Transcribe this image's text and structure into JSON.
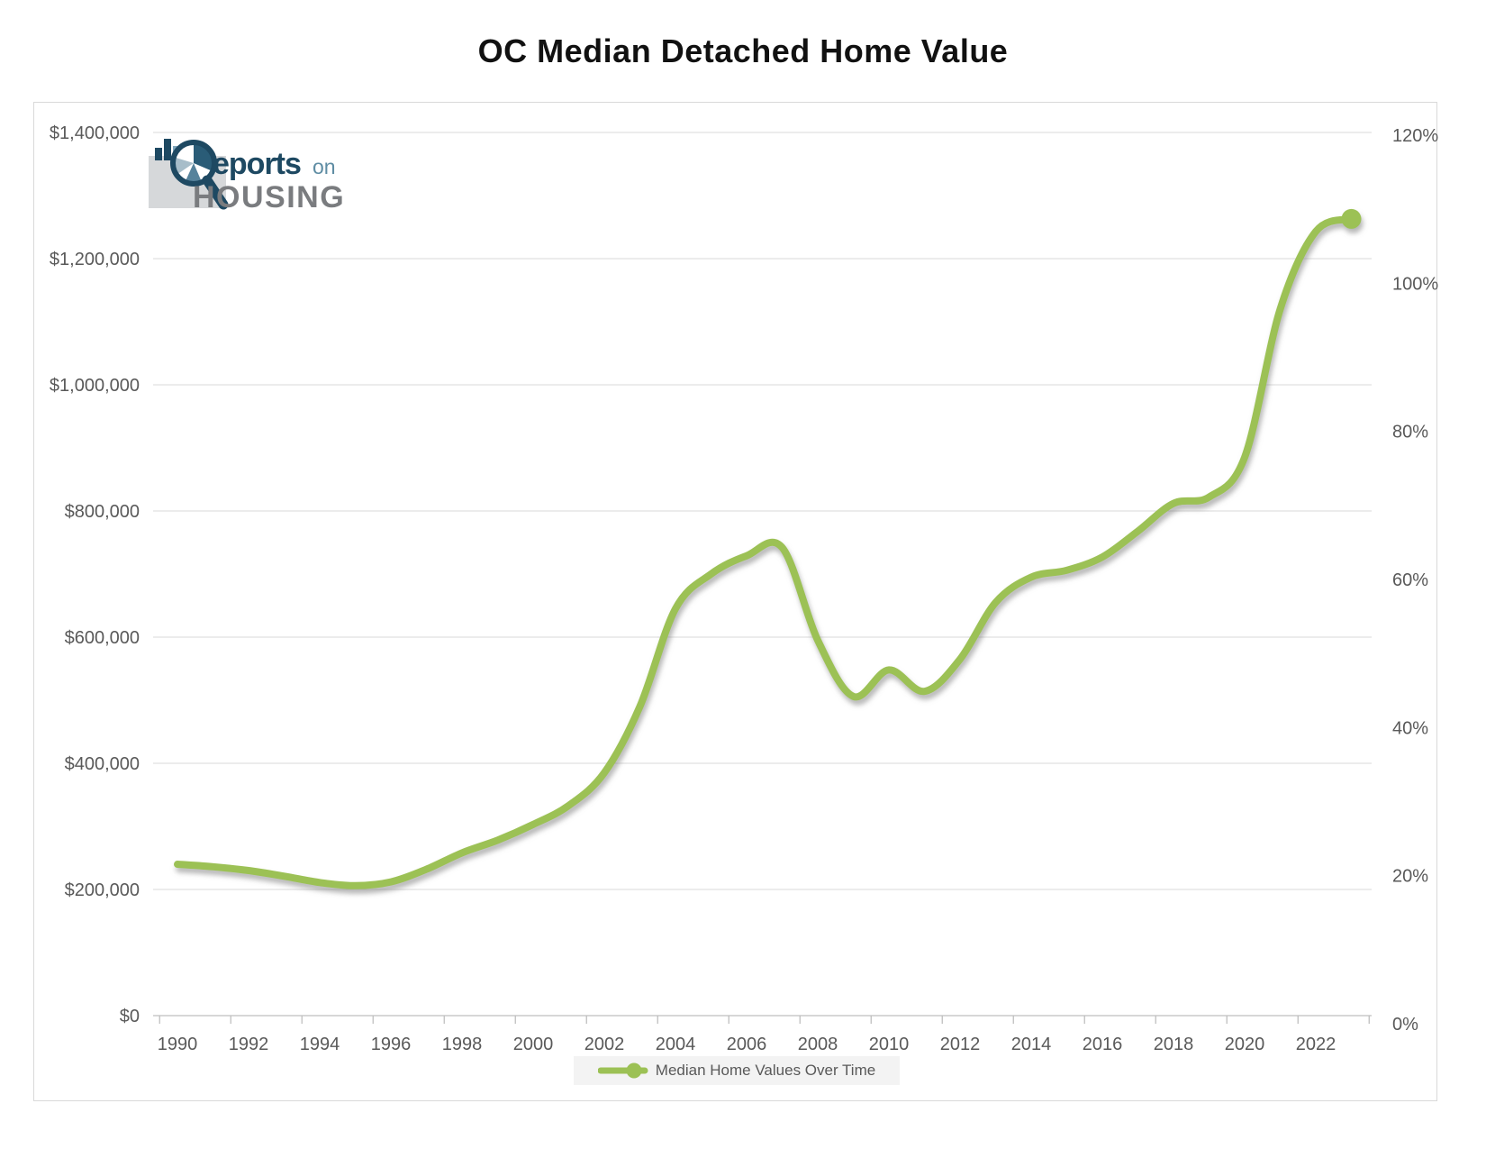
{
  "title": "OC Median Detached Home Value",
  "logo": {
    "part1": "eports",
    "part2": "on",
    "part3": "HOUSING"
  },
  "legend": {
    "label": "Median Home Values Over Time"
  },
  "chart_data": {
    "type": "line",
    "title": "OC Median Detached Home Value",
    "grid": "horizontal",
    "legend_position": "bottom-center",
    "series": [
      {
        "name": "Median Home Values Over Time",
        "color": "#9CC155",
        "smooth": true,
        "end_marker": true,
        "x": [
          1990,
          1991,
          1992,
          1993,
          1994,
          1995,
          1996,
          1997,
          1998,
          1999,
          2000,
          2001,
          2002,
          2003,
          2004,
          2005,
          2006,
          2007,
          2008,
          2009,
          2010,
          2011,
          2012,
          2013,
          2014,
          2015,
          2016,
          2017,
          2018,
          2019,
          2020,
          2021,
          2022,
          2023
        ],
        "values": [
          240000,
          236000,
          230000,
          221000,
          211000,
          206000,
          212000,
          232000,
          258000,
          278000,
          303000,
          333000,
          385000,
          490000,
          645000,
          700000,
          729000,
          742000,
          595000,
          506000,
          548000,
          514000,
          565000,
          655000,
          695000,
          706000,
          727000,
          768000,
          812000,
          822000,
          885000,
          1120000,
          1243000,
          1263000
        ]
      }
    ],
    "x_axis": {
      "tick_labels": [
        "1990",
        "1992",
        "1994",
        "1996",
        "1998",
        "2000",
        "2002",
        "2004",
        "2006",
        "2008",
        "2010",
        "2012",
        "2014",
        "2016",
        "2018",
        "2020",
        "2022"
      ],
      "tick_years": [
        1990,
        1992,
        1994,
        1996,
        1998,
        2000,
        2002,
        2004,
        2006,
        2008,
        2010,
        2012,
        2014,
        2016,
        2018,
        2020,
        2022
      ],
      "range_years": [
        1989.5,
        2023.5
      ]
    },
    "y_axis_left": {
      "tick_labels": [
        "$0",
        "$200,000",
        "$400,000",
        "$600,000",
        "$800,000",
        "$1,000,000",
        "$1,200,000",
        "$1,400,000"
      ],
      "tick_values": [
        0,
        200000,
        400000,
        600000,
        800000,
        1000000,
        1200000,
        1400000
      ],
      "min": 0,
      "max": 1400000
    },
    "y_axis_right": {
      "tick_labels": [
        "0%",
        "20%",
        "40%",
        "60%",
        "80%",
        "100%",
        "120%"
      ],
      "tick_values": [
        0,
        20,
        40,
        60,
        80,
        100,
        120
      ],
      "min": 0,
      "max": 120
    }
  }
}
